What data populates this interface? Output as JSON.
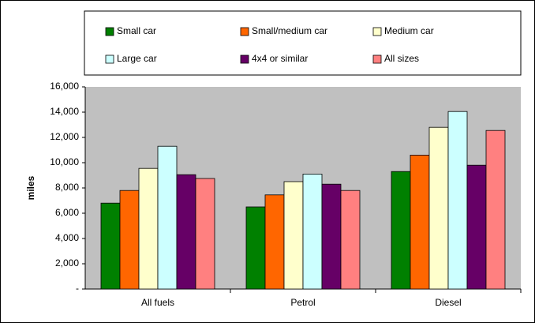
{
  "chart_data": {
    "type": "bar",
    "y_label": "miles",
    "categories": [
      "All fuels",
      "Petrol",
      "Diesel"
    ],
    "series": [
      {
        "name": "Small car",
        "color": "#008000",
        "values": [
          6800,
          6500,
          9300
        ]
      },
      {
        "name": "Small/medium car",
        "color": "#ff6600",
        "values": [
          7800,
          7450,
          10600
        ]
      },
      {
        "name": "Medium car",
        "color": "#ffffcc",
        "values": [
          9550,
          8500,
          12800
        ]
      },
      {
        "name": "Large car",
        "color": "#ccffff",
        "values": [
          11300,
          9100,
          14050
        ]
      },
      {
        "name": "4x4 or similar",
        "color": "#660066",
        "values": [
          9050,
          8300,
          9800
        ]
      },
      {
        "name": "All sizes",
        "color": "#ff8080",
        "values": [
          8750,
          7800,
          12550
        ]
      }
    ],
    "ylim": [
      0,
      16000
    ],
    "yticks": [
      {
        "value": 0,
        "label": "-"
      },
      {
        "value": 2000,
        "label": "2,000"
      },
      {
        "value": 4000,
        "label": "4,000"
      },
      {
        "value": 6000,
        "label": "6,000"
      },
      {
        "value": 8000,
        "label": "8,000"
      },
      {
        "value": 10000,
        "label": "10,000"
      },
      {
        "value": 12000,
        "label": "12,000"
      },
      {
        "value": 14000,
        "label": "14,000"
      },
      {
        "value": 16000,
        "label": "16,000"
      }
    ],
    "background": "#c0c0c0",
    "legend": "top"
  }
}
